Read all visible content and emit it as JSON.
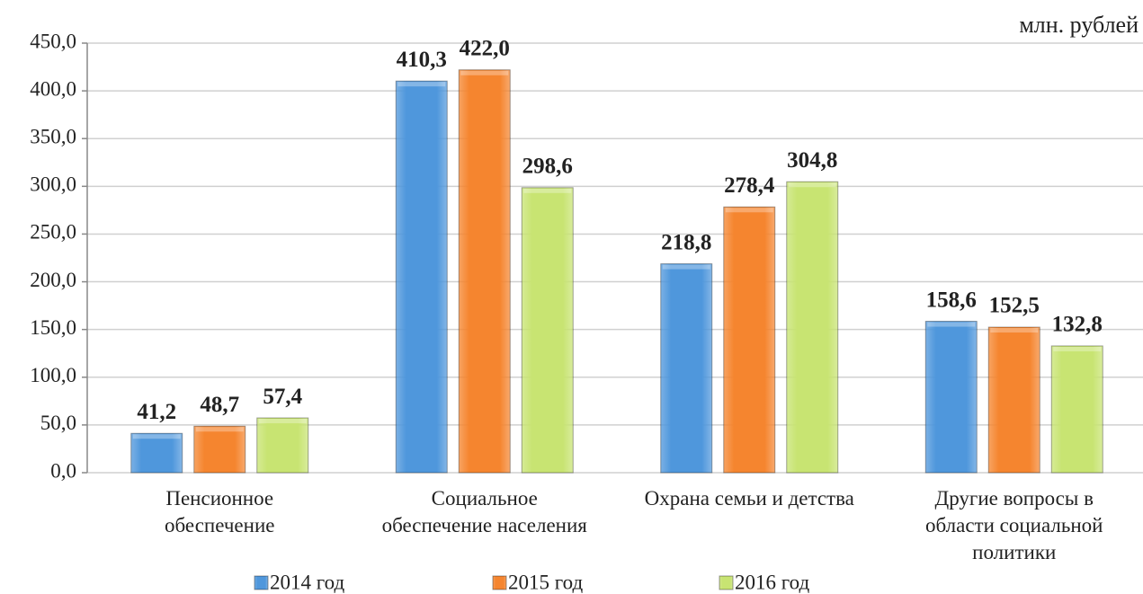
{
  "chart_data": {
    "type": "bar",
    "unit": "млн. рублей",
    "categories": [
      "Пенсионное\nобеспечение",
      "Социальное\nобеспечение населения",
      "Охрана семьи и детства",
      "Другие вопросы в\nобласти социальной\nполитики"
    ],
    "series": [
      {
        "name": "2014 год",
        "color": "#4f97dc",
        "values": [
          41.2,
          410.3,
          218.8,
          158.6
        ],
        "value_labels": [
          "41,2",
          "410,3",
          "218,8",
          "158,6"
        ]
      },
      {
        "name": "2015 год",
        "color": "#f5852f",
        "values": [
          48.7,
          422.0,
          278.4,
          152.5
        ],
        "value_labels": [
          "48,7",
          "422,0",
          "278,4",
          "152,5"
        ]
      },
      {
        "name": "2016 год",
        "color": "#c8e472",
        "values": [
          57.4,
          298.6,
          304.8,
          132.8
        ],
        "value_labels": [
          "57,4",
          "298,6",
          "304,8",
          "132,8"
        ]
      }
    ],
    "ylim": [
      0,
      450
    ],
    "yticks": [
      {
        "value": 0,
        "label": "0,0"
      },
      {
        "value": 50,
        "label": "50,0"
      },
      {
        "value": 100,
        "label": "100,0"
      },
      {
        "value": 150,
        "label": "150,0"
      },
      {
        "value": 200,
        "label": "200,0"
      },
      {
        "value": 250,
        "label": "250,0"
      },
      {
        "value": 300,
        "label": "300,0"
      },
      {
        "value": 350,
        "label": "350,0"
      },
      {
        "value": 400,
        "label": "400,0"
      },
      {
        "value": 450,
        "label": "450,0"
      }
    ],
    "grid": true
  }
}
